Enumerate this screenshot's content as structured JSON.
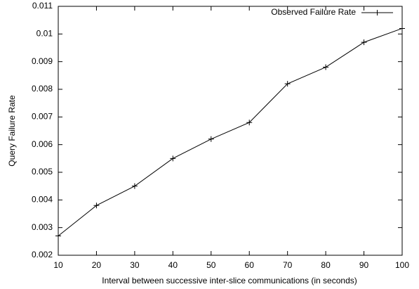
{
  "chart_data": {
    "type": "line",
    "x_label": "Interval between successive inter-slice communications (in seconds)",
    "y_label": "Query Failure Rate",
    "x": [
      10,
      20,
      30,
      40,
      50,
      60,
      70,
      80,
      90,
      100
    ],
    "series": [
      {
        "name": "Observed Failure Rate",
        "color": "#000000",
        "values": [
          0.0027,
          0.0038,
          0.0045,
          0.0055,
          0.0062,
          0.0068,
          0.0082,
          0.0088,
          0.0097,
          0.0102
        ]
      }
    ],
    "xlim": [
      10,
      100
    ],
    "xticks": [
      10,
      20,
      30,
      40,
      50,
      60,
      70,
      80,
      90,
      100
    ],
    "ylim": [
      0.002,
      0.011
    ],
    "yticks": [
      0.002,
      0.003,
      0.004,
      0.005,
      0.006,
      0.007,
      0.008,
      0.009,
      0.01,
      0.011
    ],
    "grid": false,
    "legend": "top-right"
  }
}
